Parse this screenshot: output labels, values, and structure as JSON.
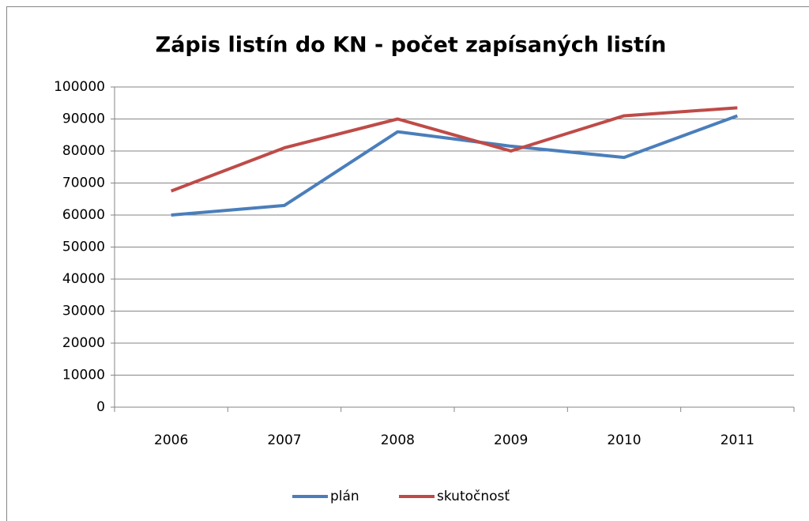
{
  "chart_data": {
    "type": "line",
    "title": "Zápis listín do KN - počet zapísaných listín",
    "categories": [
      "2006",
      "2007",
      "2008",
      "2009",
      "2010",
      "2011"
    ],
    "series": [
      {
        "name": "plán",
        "color": "#4a7ebb",
        "values": [
          60000,
          63000,
          86000,
          81500,
          78000,
          91000
        ]
      },
      {
        "name": "skutočnosť",
        "color": "#be4b48",
        "values": [
          67500,
          81000,
          90000,
          80000,
          91000,
          93500
        ]
      }
    ],
    "ylim": [
      0,
      100000
    ],
    "yticks": [
      0,
      10000,
      20000,
      30000,
      40000,
      50000,
      60000,
      70000,
      80000,
      90000,
      100000
    ],
    "grid": true,
    "legend": "bottom"
  }
}
